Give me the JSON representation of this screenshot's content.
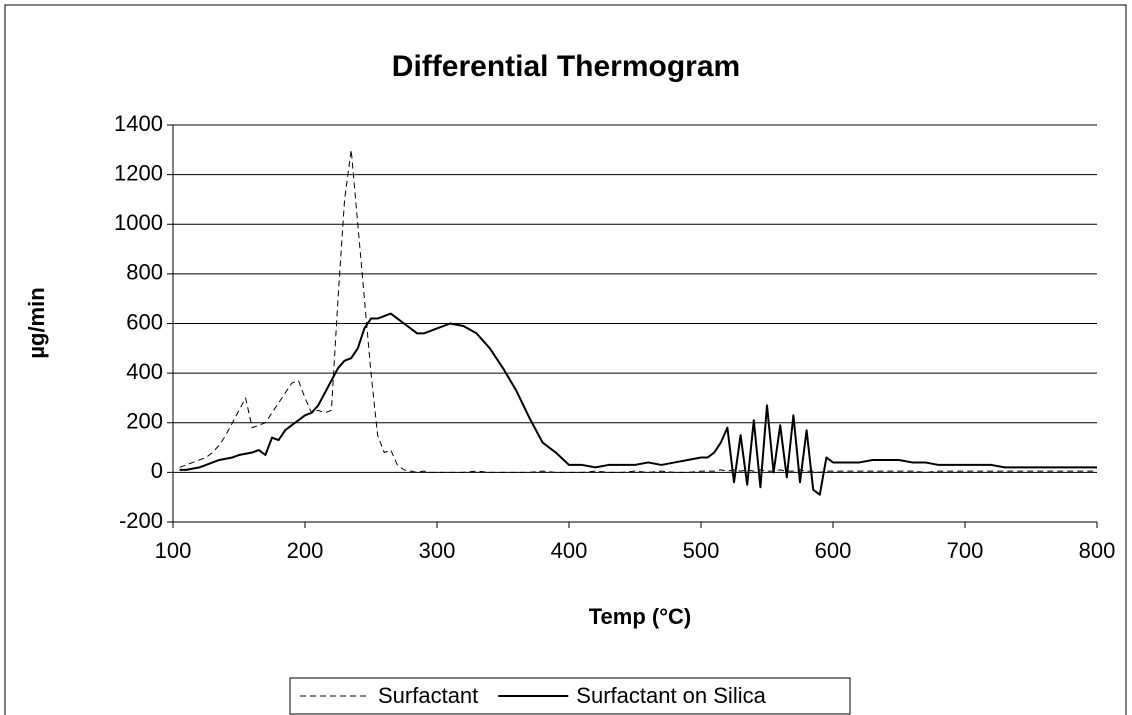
{
  "chart_data": {
    "type": "line",
    "title": "Differential Thermogram",
    "xlabel": "Temp (°C)",
    "ylabel": "µg/min",
    "x": [
      105,
      110,
      115,
      120,
      125,
      130,
      135,
      140,
      145,
      150,
      155,
      160,
      165,
      170,
      175,
      180,
      185,
      190,
      195,
      200,
      205,
      210,
      215,
      220,
      225,
      230,
      235,
      240,
      245,
      250,
      255,
      260,
      265,
      270,
      275,
      280,
      285,
      290,
      295,
      300,
      310,
      320,
      330,
      340,
      350,
      360,
      370,
      380,
      390,
      400,
      410,
      420,
      430,
      440,
      450,
      460,
      470,
      480,
      490,
      500,
      505,
      510,
      515,
      520,
      525,
      530,
      535,
      540,
      545,
      550,
      555,
      560,
      565,
      570,
      575,
      580,
      585,
      590,
      595,
      600,
      610,
      620,
      630,
      640,
      650,
      660,
      670,
      680,
      690,
      700,
      710,
      720,
      730,
      740,
      750,
      760,
      770,
      780,
      790,
      800
    ],
    "series": [
      {
        "name": "Surfactant",
        "color": "#000000",
        "line_style": "dashed",
        "values": [
          20,
          30,
          40,
          50,
          60,
          80,
          110,
          150,
          200,
          250,
          300,
          180,
          190,
          200,
          240,
          280,
          320,
          360,
          370,
          300,
          240,
          250,
          240,
          250,
          700,
          1100,
          1300,
          1000,
          700,
          400,
          150,
          80,
          90,
          30,
          10,
          5,
          0,
          5,
          0,
          0,
          0,
          0,
          5,
          0,
          0,
          0,
          0,
          5,
          0,
          0,
          0,
          5,
          0,
          0,
          5,
          0,
          5,
          0,
          0,
          5,
          5,
          5,
          10,
          5,
          10,
          5,
          10,
          5,
          10,
          5,
          5,
          10,
          5,
          5,
          10,
          5,
          5,
          0,
          5,
          5,
          5,
          5,
          5,
          5,
          5,
          5,
          0,
          5,
          5,
          5,
          5,
          5,
          5,
          5,
          5,
          5,
          5,
          5,
          5,
          5
        ]
      },
      {
        "name": "Surfactant on Silica",
        "color": "#000000",
        "line_style": "solid",
        "values": [
          10,
          10,
          15,
          20,
          30,
          40,
          50,
          55,
          60,
          70,
          75,
          80,
          90,
          70,
          140,
          130,
          170,
          190,
          210,
          230,
          240,
          270,
          320,
          370,
          420,
          450,
          460,
          500,
          580,
          620,
          620,
          630,
          640,
          620,
          600,
          580,
          560,
          560,
          570,
          580,
          600,
          590,
          560,
          500,
          420,
          330,
          220,
          120,
          80,
          30,
          30,
          20,
          30,
          30,
          30,
          40,
          30,
          40,
          50,
          60,
          60,
          80,
          120,
          180,
          -40,
          150,
          -50,
          210,
          -60,
          270,
          0,
          190,
          -20,
          230,
          -40,
          170,
          -70,
          -90,
          60,
          40,
          40,
          40,
          50,
          50,
          50,
          40,
          40,
          30,
          30,
          30,
          30,
          30,
          20,
          20,
          20,
          20,
          20,
          20,
          20,
          20
        ]
      }
    ],
    "xlim": [
      100,
      800
    ],
    "xticks": [
      100,
      200,
      300,
      400,
      500,
      600,
      700,
      800
    ],
    "ylim": [
      -200,
      1400
    ],
    "yticks": [
      -200,
      0,
      200,
      400,
      600,
      800,
      1000,
      1200,
      1400
    ],
    "grid": true,
    "legend": "bottom"
  }
}
